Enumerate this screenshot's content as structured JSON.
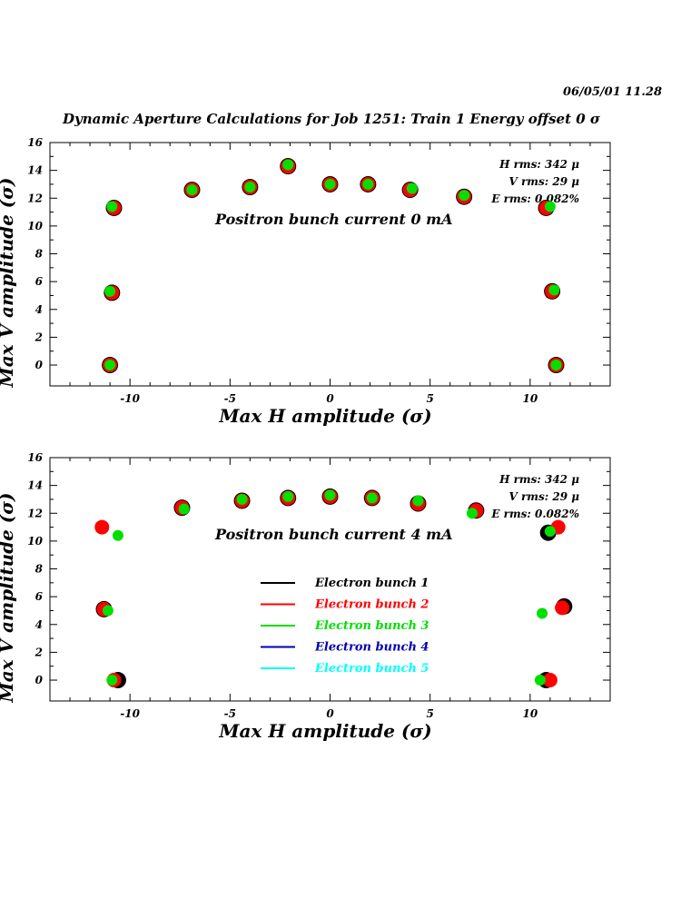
{
  "header": {
    "date": "06/05/01  11.28",
    "title": "Dynamic Aperture Calculations for Job 1251:  Train 1   Energy offset  0 σ"
  },
  "colors": {
    "bunch1": "#000000",
    "bunch2": "#ff0000",
    "bunch3": "#00e000",
    "bunch4": "#0000b0",
    "bunch5": "#00ffff"
  },
  "chart_data": [
    {
      "type": "scatter",
      "xlabel": "Max H amplitude (σ)",
      "ylabel": "Max V amplitude (σ)",
      "xlim": [
        -14,
        14
      ],
      "ylim": [
        -1.5,
        16
      ],
      "xticks": [
        "-10",
        "-5",
        "0",
        "5",
        "10"
      ],
      "yticks": [
        "0",
        "2",
        "4",
        "6",
        "8",
        "10",
        "12",
        "14",
        "16"
      ],
      "annotation": "Positron bunch current  0 mA",
      "stats": [
        "H rms: 342 μ",
        "V rms: 29 μ",
        "E rms: 0.082%"
      ],
      "series": [
        {
          "name": "Electron bunch 1",
          "color": "#000000",
          "points": [
            [
              -11.0,
              0
            ],
            [
              -10.9,
              5.2
            ],
            [
              -10.8,
              11.3
            ],
            [
              -6.9,
              12.6
            ],
            [
              -4.0,
              12.8
            ],
            [
              -2.1,
              14.3
            ],
            [
              0,
              13.0
            ],
            [
              1.9,
              13.0
            ],
            [
              4.0,
              12.6
            ],
            [
              6.7,
              12.1
            ],
            [
              10.8,
              11.3
            ],
            [
              11.1,
              5.3
            ],
            [
              11.3,
              0
            ]
          ]
        },
        {
          "name": "Electron bunch 2",
          "color": "#ff0000",
          "points": [
            [
              -11.0,
              0
            ],
            [
              -10.9,
              5.2
            ],
            [
              -10.8,
              11.3
            ],
            [
              -6.9,
              12.6
            ],
            [
              -4.0,
              12.8
            ],
            [
              -2.1,
              14.3
            ],
            [
              0,
              13.0
            ],
            [
              1.9,
              13.0
            ],
            [
              4.0,
              12.6
            ],
            [
              6.7,
              12.1
            ],
            [
              10.8,
              11.3
            ],
            [
              11.1,
              5.3
            ],
            [
              11.3,
              0
            ]
          ]
        },
        {
          "name": "Electron bunch 3",
          "color": "#00e000",
          "points": [
            [
              -11.0,
              0
            ],
            [
              -11.0,
              5.3
            ],
            [
              -10.9,
              11.4
            ],
            [
              -6.9,
              12.6
            ],
            [
              -4.0,
              12.8
            ],
            [
              -2.1,
              14.4
            ],
            [
              0,
              13.0
            ],
            [
              1.9,
              13.0
            ],
            [
              4.1,
              12.7
            ],
            [
              6.7,
              12.2
            ],
            [
              11.0,
              11.4
            ],
            [
              11.2,
              5.4
            ],
            [
              11.3,
              0
            ]
          ]
        }
      ]
    },
    {
      "type": "scatter",
      "xlabel": "Max H amplitude (σ)",
      "ylabel": "Max V amplitude (σ)",
      "xlim": [
        -14,
        14
      ],
      "ylim": [
        -1.5,
        16
      ],
      "xticks": [
        "-10",
        "-5",
        "0",
        "5",
        "10"
      ],
      "yticks": [
        "0",
        "2",
        "4",
        "6",
        "8",
        "10",
        "12",
        "14",
        "16"
      ],
      "annotation": "Positron bunch current  4 mA",
      "stats": [
        "H rms: 342 μ",
        "V rms: 29 μ",
        "E rms: 0.082%"
      ],
      "legend": [
        "Electron bunch 1",
        "Electron bunch 2",
        "Electron bunch 3",
        "Electron bunch 4",
        "Electron bunch 5"
      ],
      "series": [
        {
          "name": "Electron bunch 1",
          "color": "#000000",
          "points": [
            [
              -10.6,
              0
            ],
            [
              -11.3,
              5.1
            ],
            [
              -7.4,
              12.4
            ],
            [
              -4.4,
              12.9
            ],
            [
              -2.1,
              13.1
            ],
            [
              0,
              13.2
            ],
            [
              2.1,
              13.1
            ],
            [
              4.4,
              12.7
            ],
            [
              7.3,
              12.2
            ],
            [
              10.9,
              10.6
            ],
            [
              11.7,
              5.3
            ],
            [
              10.8,
              0
            ]
          ]
        },
        {
          "name": "Electron bunch 2",
          "color": "#ff0000",
          "points": [
            [
              -11.4,
              11.0
            ],
            [
              -11.3,
              5.1
            ],
            [
              -10.8,
              0
            ],
            [
              -7.4,
              12.4
            ],
            [
              -4.4,
              12.9
            ],
            [
              -2.1,
              13.1
            ],
            [
              0,
              13.2
            ],
            [
              2.1,
              13.1
            ],
            [
              4.4,
              12.7
            ],
            [
              7.3,
              12.2
            ],
            [
              11.4,
              11.0
            ],
            [
              11.6,
              5.2
            ],
            [
              11.0,
              0
            ]
          ]
        },
        {
          "name": "Electron bunch 3",
          "color": "#00e000",
          "points": [
            [
              -10.6,
              10.4
            ],
            [
              -11.1,
              5.0
            ],
            [
              -10.9,
              0
            ],
            [
              -7.3,
              12.3
            ],
            [
              -4.4,
              13.0
            ],
            [
              -2.1,
              13.2
            ],
            [
              0,
              13.3
            ],
            [
              2.1,
              13.1
            ],
            [
              4.4,
              12.9
            ],
            [
              7.1,
              12.0
            ],
            [
              11.0,
              10.7
            ],
            [
              10.6,
              4.8
            ],
            [
              10.5,
              0
            ]
          ]
        }
      ]
    }
  ]
}
